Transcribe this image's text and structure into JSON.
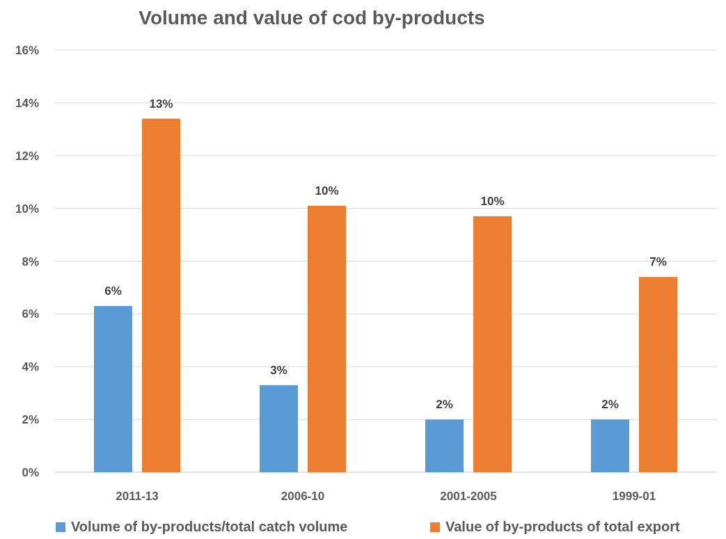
{
  "chart_data": {
    "type": "bar",
    "title": "Volume and value of cod by-products",
    "categories": [
      "2011-13",
      "2006-10",
      "2001-2005",
      "1999-01"
    ],
    "series": [
      {
        "name": "Volume of by-products/total catch volume",
        "color": "#5b9bd5",
        "values": [
          6.3,
          3.3,
          2.0,
          2.0
        ],
        "value_labels": [
          "6%",
          "3%",
          "2%",
          "2%"
        ]
      },
      {
        "name": "Value of by-products of total export",
        "color": "#ed7d31",
        "values": [
          13.4,
          10.1,
          9.7,
          7.4
        ],
        "value_labels": [
          "13%",
          "10%",
          "10%",
          "7%"
        ]
      }
    ],
    "ylim": [
      0,
      16
    ],
    "yticks": [
      {
        "value": 0,
        "label": "0%"
      },
      {
        "value": 2,
        "label": "2%"
      },
      {
        "value": 4,
        "label": "4%"
      },
      {
        "value": 6,
        "label": "6%"
      },
      {
        "value": 8,
        "label": "8%"
      },
      {
        "value": 10,
        "label": "10%"
      },
      {
        "value": 12,
        "label": "12%"
      },
      {
        "value": 14,
        "label": "14%"
      },
      {
        "value": 16,
        "label": "16%"
      }
    ],
    "grid": "y",
    "legend": "bottom"
  }
}
